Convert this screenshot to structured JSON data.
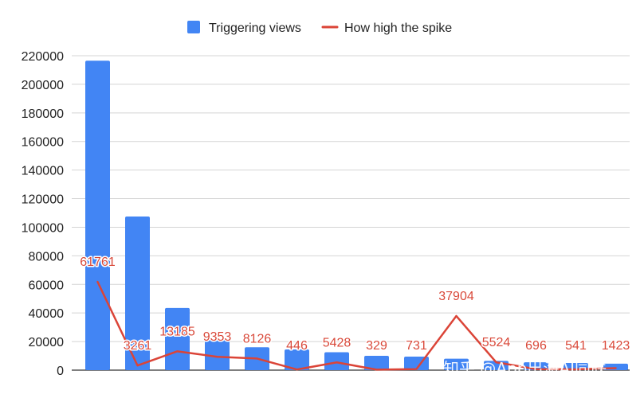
{
  "chart_data": {
    "type": "bar",
    "title": "",
    "xlabel": "",
    "ylabel": "",
    "categories": [
      "",
      "",
      "",
      "",
      "",
      "",
      "",
      "",
      "",
      "",
      "",
      "",
      "",
      ""
    ],
    "series": [
      {
        "name": "Triggering views",
        "type": "bar",
        "color": "#4285f4",
        "values": [
          216500,
          107500,
          43500,
          21000,
          16000,
          14500,
          12500,
          10000,
          9500,
          8000,
          6500,
          5500,
          5000,
          4500
        ]
      },
      {
        "name": "How high the spike",
        "type": "line",
        "color": "#db4437",
        "values": [
          61761,
          3261,
          13185,
          9353,
          8126,
          446,
          5428,
          329,
          731,
          37904,
          5524,
          696,
          541,
          1423
        ],
        "data_labels": [
          "61761",
          "3261",
          "13185",
          "9353",
          "8126",
          "446",
          "5428",
          "329",
          "731",
          "37904",
          "5524",
          "696",
          "541",
          "1423"
        ]
      }
    ],
    "ylim": [
      0,
      220000
    ],
    "yticks": [
      0,
      20000,
      40000,
      60000,
      80000,
      100000,
      120000,
      140000,
      160000,
      180000,
      200000,
      220000
    ],
    "ytick_labels": [
      "0",
      "20000",
      "40000",
      "60000",
      "80000",
      "100000",
      "120000",
      "140000",
      "160000",
      "180000",
      "200000",
      "220000"
    ],
    "grid": true,
    "legend": "top-center"
  },
  "legend": {
    "items": [
      {
        "label": "Triggering views",
        "color": "#4285f4",
        "icon": "square-swatch"
      },
      {
        "label": "How high the spike",
        "color": "#db4437",
        "icon": "line-swatch"
      }
    ]
  },
  "watermark": {
    "text": "知乎 @App出海AI同联"
  }
}
